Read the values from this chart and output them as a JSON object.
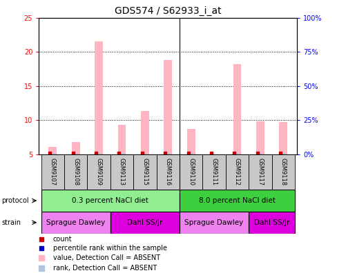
{
  "title": "GDS574 / S62933_i_at",
  "samples": [
    "GSM9107",
    "GSM9108",
    "GSM9109",
    "GSM9113",
    "GSM9115",
    "GSM9116",
    "GSM9110",
    "GSM9111",
    "GSM9112",
    "GSM9117",
    "GSM9118"
  ],
  "bar_values": [
    6.1,
    6.8,
    21.5,
    9.3,
    11.3,
    18.8,
    8.7,
    5.0,
    18.2,
    9.8,
    9.7
  ],
  "rank_values": [
    5.2,
    5.2,
    5.2,
    5.2,
    5.2,
    5.2,
    5.2,
    5.0,
    5.2,
    5.2,
    5.2
  ],
  "ylim_left": [
    5,
    25
  ],
  "ylim_right": [
    0,
    100
  ],
  "yticks_left": [
    5,
    10,
    15,
    20,
    25
  ],
  "yticks_right": [
    0,
    25,
    50,
    75,
    100
  ],
  "ytick_labels_right": [
    "0%",
    "25%",
    "50%",
    "75%",
    "100%"
  ],
  "protocol_groups": [
    {
      "label": "0.3 percent NaCl diet",
      "start": 0,
      "end": 6,
      "color": "#90ee90"
    },
    {
      "label": "8.0 percent NaCl diet",
      "start": 6,
      "end": 11,
      "color": "#3ecf3e"
    }
  ],
  "strain_groups": [
    {
      "label": "Sprague Dawley",
      "start": 0,
      "end": 3,
      "color": "#ee82ee"
    },
    {
      "label": "Dahl SS/Jr",
      "start": 3,
      "end": 6,
      "color": "#dd00dd"
    },
    {
      "label": "Sprague Dawley",
      "start": 6,
      "end": 9,
      "color": "#ee82ee"
    },
    {
      "label": "Dahl SS/Jr",
      "start": 9,
      "end": 11,
      "color": "#dd00dd"
    }
  ],
  "bar_color": "#ffb6c1",
  "rank_color": "#b0c4de",
  "count_color": "#cc0000",
  "rank_dot_color": "#0000cc",
  "background_color": "#ffffff",
  "title_fontsize": 10,
  "tick_fontsize": 7,
  "sample_fontsize": 6,
  "row_fontsize": 7.5,
  "legend_fontsize": 7,
  "bar_width": 0.35,
  "rank_bar_width": 0.15,
  "group_sep": 5.5
}
